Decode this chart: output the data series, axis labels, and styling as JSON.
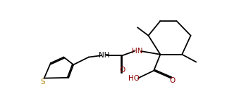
{
  "bg_color": "#ffffff",
  "line_color": "#000000",
  "bond_lw": 1.3,
  "font_size": 7.5,
  "color_S": "#b8860b",
  "color_N": "#000000",
  "color_O": "#8b0000",
  "label_NH": "NH",
  "label_HN": "HN",
  "label_S": "S",
  "label_O": "O",
  "label_HO": "HO"
}
